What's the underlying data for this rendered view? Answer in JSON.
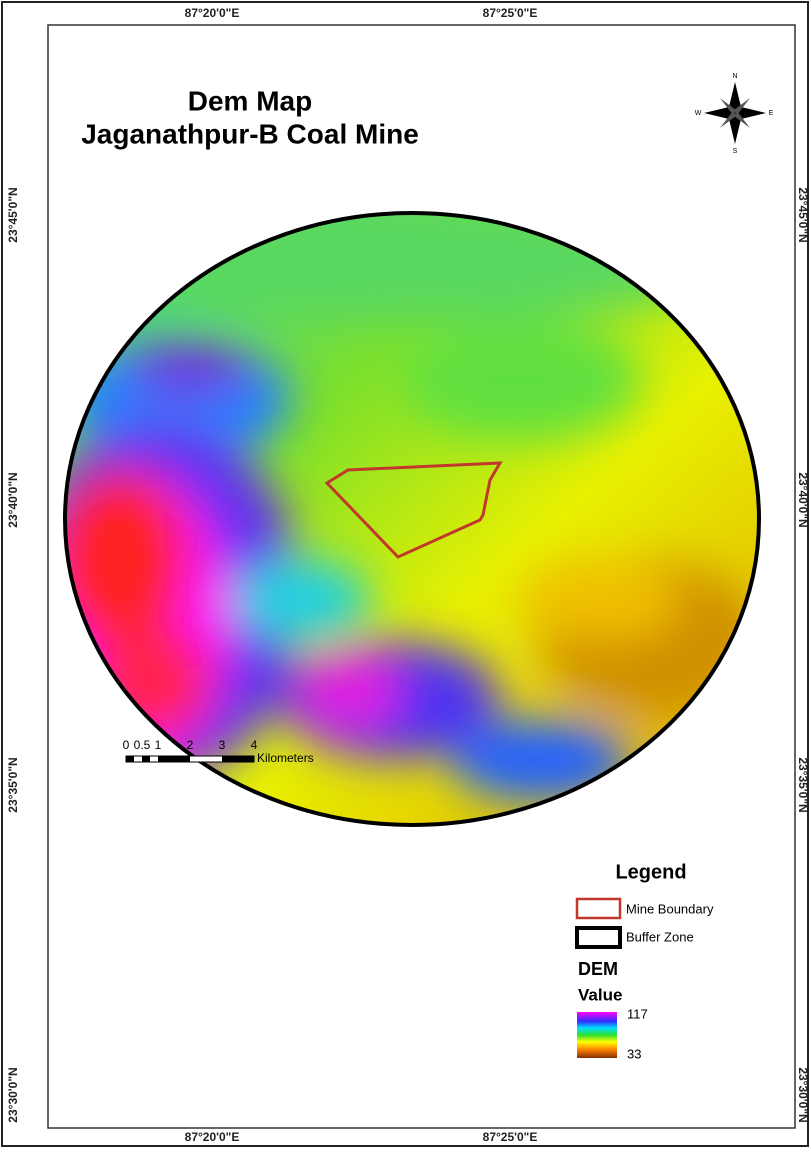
{
  "map": {
    "title": [
      "Dem Map",
      "Jaganathpur-B Coal Mine"
    ],
    "longitude_labels": [
      "87°20'0\"E",
      "87°25'0\"E"
    ],
    "latitude_labels": [
      "23°45'0\"N",
      "23°40'0\"N",
      "23°35'0\"N",
      "23°30'0\"N"
    ],
    "compass": {
      "n": "N",
      "s": "S",
      "e": "E",
      "w": "W"
    },
    "legend": {
      "title": "Legend",
      "items": [
        "Mine Boundary",
        "Buffer Zone"
      ],
      "dem_title": "DEM",
      "value_title": "Value",
      "high": 117,
      "low": 33
    },
    "scale_bar": {
      "labels": [
        0,
        0.5,
        1,
        2,
        3,
        4
      ],
      "unit": "Kilometers"
    }
  }
}
